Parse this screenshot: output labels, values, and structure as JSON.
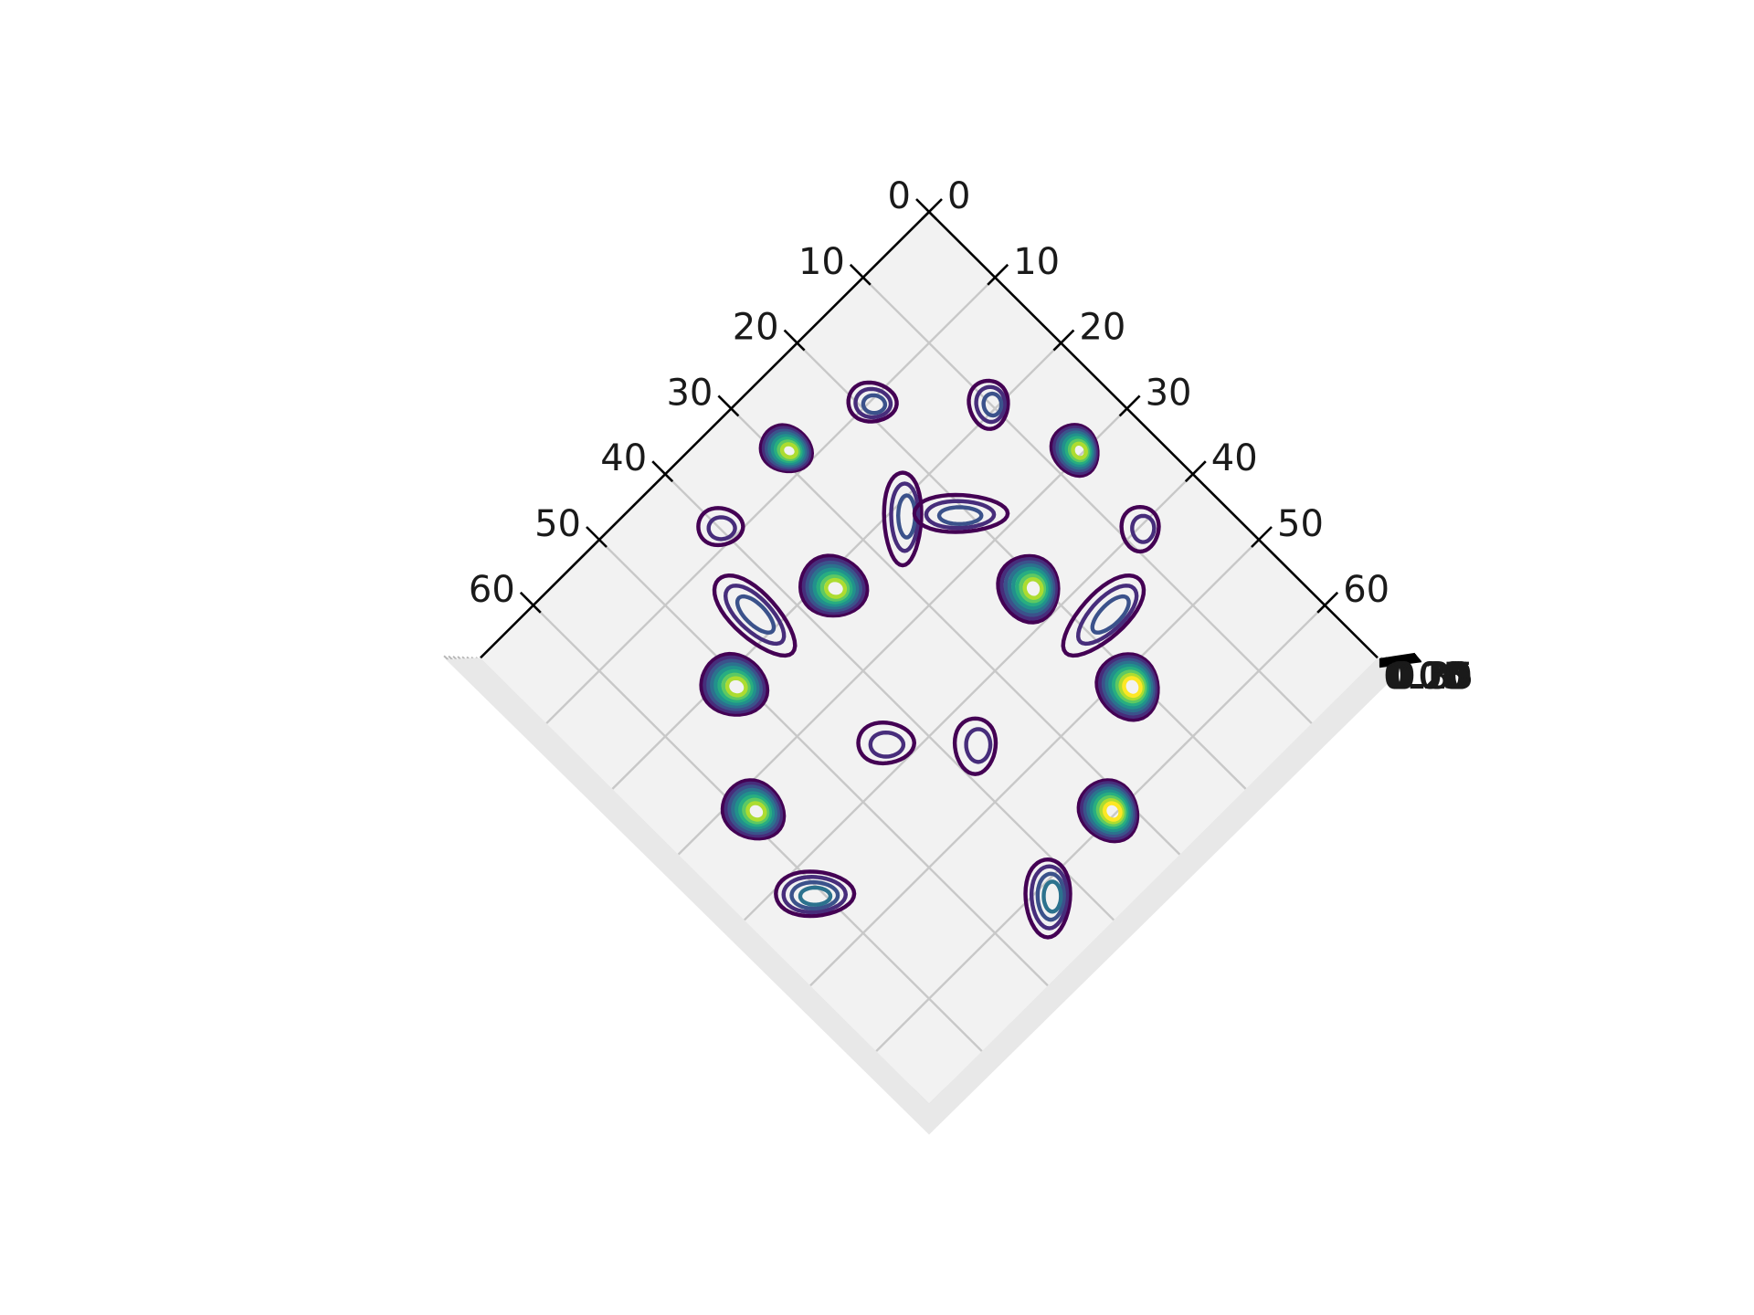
{
  "chart_data": {
    "type": "contour",
    "title": "",
    "xlabel": "",
    "ylabel": "",
    "zlabel": "",
    "view": "3d top-down, rotated 45 degrees",
    "xlim": [
      0,
      68
    ],
    "ylim": [
      0,
      68
    ],
    "grid": true,
    "x_ticks": [
      "0",
      "10",
      "20",
      "30",
      "40",
      "50",
      "60"
    ],
    "y_ticks": [
      "0",
      "10",
      "20",
      "30",
      "40",
      "50",
      "60"
    ],
    "z_ticks": [
      "0.00",
      "0.05",
      "0.10",
      "0.15",
      "0.20",
      "0.25",
      "0.30",
      "0.35"
    ],
    "colormap": [
      "#440154",
      "#472d7b",
      "#3b528b",
      "#2c728e",
      "#21918c",
      "#28ae80",
      "#5ec962",
      "#addc30",
      "#fde725"
    ],
    "peaks": [
      {
        "x": 19,
        "y": 10,
        "level": 3,
        "sx": 2.6,
        "sy": 2.1,
        "rot": 40
      },
      {
        "x": 10,
        "y": 19,
        "level": 3,
        "sx": 2.6,
        "sy": 2.1,
        "rot": -40
      },
      {
        "x": 29,
        "y": 7,
        "level": 8,
        "sx": 2.8,
        "sy": 2.4,
        "rot": 20
      },
      {
        "x": 7,
        "y": 29,
        "level": 8,
        "sx": 2.8,
        "sy": 2.4,
        "rot": -20
      },
      {
        "x": 40,
        "y": 8,
        "level": 2,
        "sx": 2.4,
        "sy": 2.0,
        "rot": 45
      },
      {
        "x": 8,
        "y": 40,
        "level": 2,
        "sx": 2.4,
        "sy": 2.0,
        "rot": -45
      },
      {
        "x": 21,
        "y": 25,
        "level": 3,
        "sx": 5.0,
        "sy": 2.0,
        "rot": 45
      },
      {
        "x": 25,
        "y": 21,
        "level": 3,
        "sx": 5.0,
        "sy": 2.0,
        "rot": -45
      },
      {
        "x": 36,
        "y": 21,
        "level": 8,
        "sx": 3.6,
        "sy": 3.2,
        "rot": 30
      },
      {
        "x": 21,
        "y": 36,
        "level": 8,
        "sx": 3.6,
        "sy": 3.2,
        "rot": -30
      },
      {
        "x": 44,
        "y": 17,
        "level": 3,
        "sx": 5.6,
        "sy": 2.4,
        "rot": 90
      },
      {
        "x": 17,
        "y": 44,
        "level": 3,
        "sx": 5.6,
        "sy": 2.4,
        "rot": 0
      },
      {
        "x": 51,
        "y": 21,
        "level": 9,
        "sx": 3.6,
        "sy": 3.2,
        "rot": 20
      },
      {
        "x": 21,
        "y": 51,
        "level": 8,
        "sx": 3.6,
        "sy": 3.2,
        "rot": -20
      },
      {
        "x": 44,
        "y": 37,
        "level": 2,
        "sx": 3.0,
        "sy": 2.2,
        "rot": 45
      },
      {
        "x": 37,
        "y": 44,
        "level": 2,
        "sx": 3.0,
        "sy": 2.2,
        "rot": -45
      },
      {
        "x": 59,
        "y": 32,
        "level": 9,
        "sx": 3.4,
        "sy": 3.0,
        "rot": 10
      },
      {
        "x": 32,
        "y": 59,
        "level": 8,
        "sx": 3.4,
        "sy": 3.0,
        "rot": -10
      },
      {
        "x": 61,
        "y": 43,
        "level": 4,
        "sx": 4.2,
        "sy": 2.4,
        "rot": 45
      },
      {
        "x": 43,
        "y": 61,
        "level": 4,
        "sx": 4.2,
        "sy": 2.4,
        "rot": -45
      }
    ]
  }
}
